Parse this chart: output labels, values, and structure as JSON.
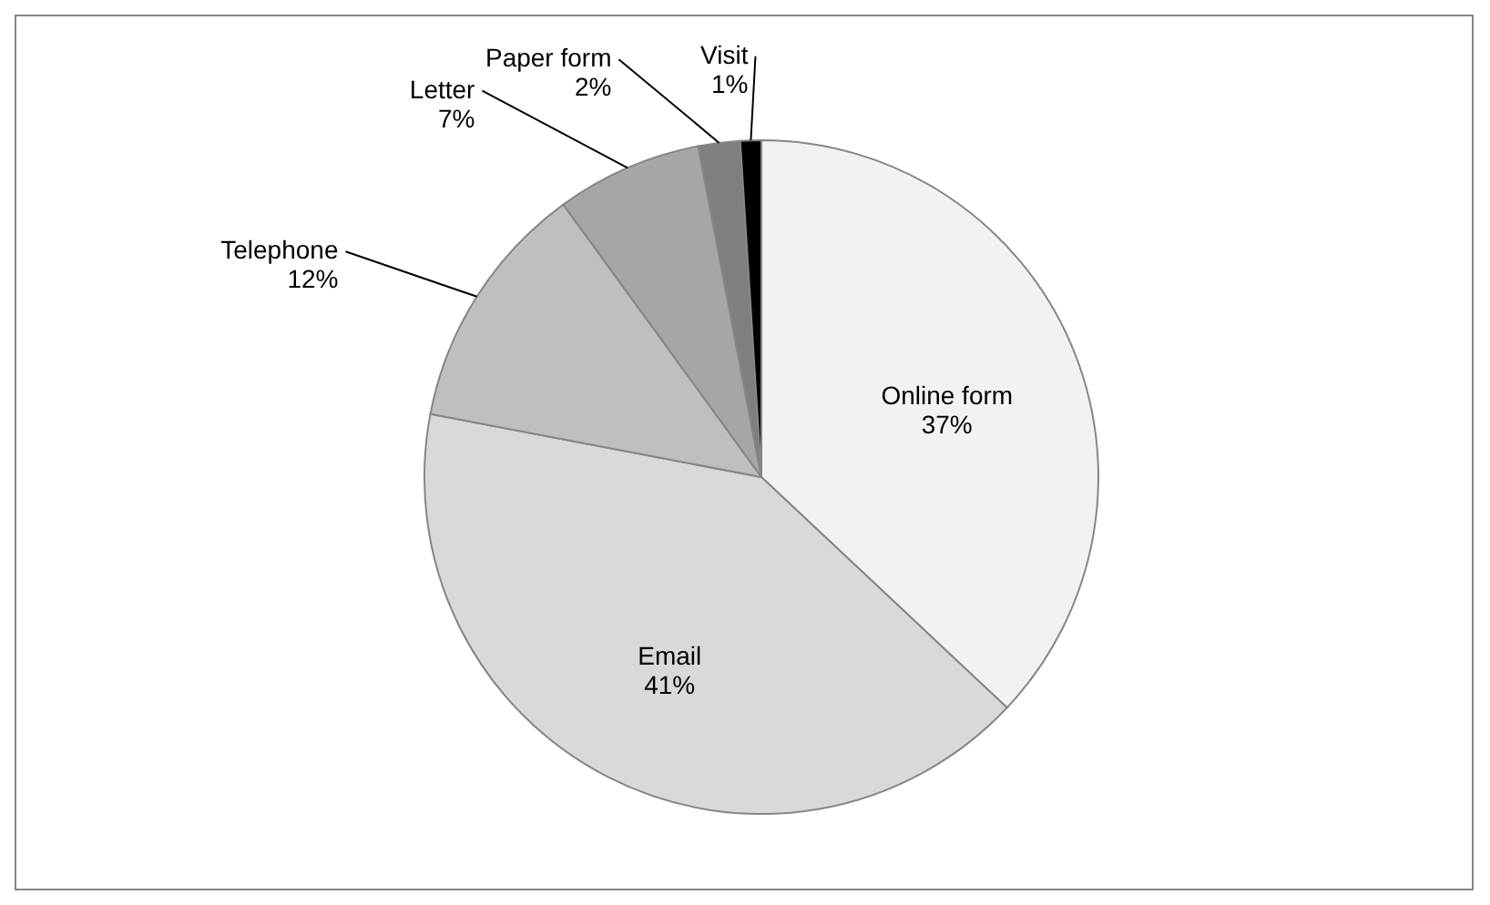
{
  "chart_data": {
    "type": "pie",
    "categories": [
      "Online form",
      "Email",
      "Telephone",
      "Letter",
      "Paper form",
      "Visit"
    ],
    "values": [
      37,
      41,
      12,
      7,
      2,
      1
    ],
    "value_labels": [
      "37%",
      "41%",
      "12%",
      "7%",
      "2%",
      "1%"
    ],
    "colors": [
      "#f2f2f2",
      "#d9d9d9",
      "#bfbfbf",
      "#a6a6a6",
      "#7f7f7f",
      "#000000"
    ],
    "legend": false
  }
}
